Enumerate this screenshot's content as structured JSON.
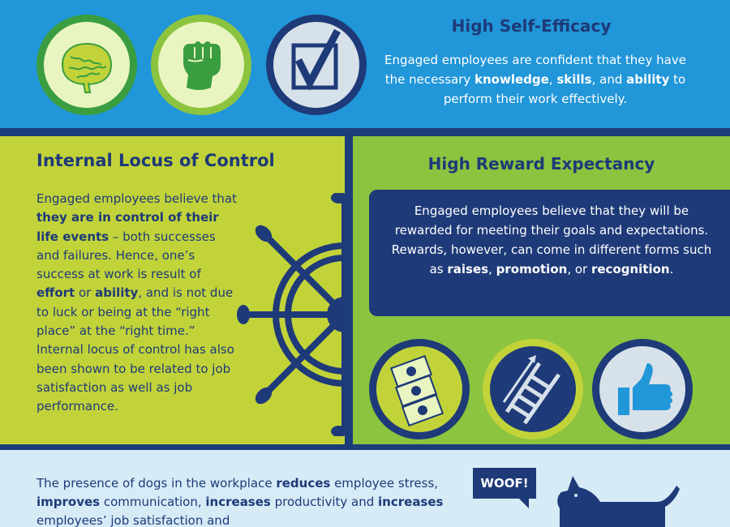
{
  "self_efficacy": {
    "title": "High Self-Efficacy",
    "text_1": "Engaged employees are confident that they have the necessary ",
    "knowledge": "knowledge",
    "comma_1": ", ",
    "skills": "skills",
    "and": ", and ",
    "ability": "ability",
    "text_2": " to perform their work effectively.",
    "icons": [
      "brain-icon",
      "raised-fist-icon",
      "checkbox-icon"
    ]
  },
  "locus": {
    "title": "Internal Locus of Control",
    "t1": "Engaged employees believe that ",
    "b1": "they are in control of their life events",
    "t2": " – both successes and failures. Hence, one’s success at work is result of ",
    "b2": "effort",
    "t3": " or ",
    "b3": "ability",
    "t4": ", and is not due to luck or being at the “right place” at the “right time.” Internal locus of control has also been shown to be related to job satisfaction as well as job performance.",
    "icon": "ship-wheel-icon"
  },
  "reward": {
    "title": "High Reward Expectancy",
    "t1": "Engaged employees believe that they will be rewarded for meeting their goals and expectations. Rewards, however, can come in different forms such as ",
    "b1": "raises",
    "t2": ", ",
    "b2": "promotion",
    "t3": ", or ",
    "b3": "recognition",
    "t4": ".",
    "icons": [
      "money-icon",
      "ladder-icon",
      "thumbs-up-icon"
    ]
  },
  "dogs": {
    "t1": "The presence of dogs in the workplace ",
    "b1": "reduces",
    "t2": " employee stress, ",
    "b2": "improves",
    "t3": " communication, ",
    "b3": "increases",
    "t4": " productivity and ",
    "b4": "increases",
    "t5": " employees’ job satisfaction and",
    "woof": "WOOF!",
    "icon": "dog-icon"
  },
  "colors": {
    "blue": "#2196d8",
    "navy": "#1e3a78",
    "lime": "#c2d33a",
    "green": "#8cc33f",
    "pale": "#d6ebf6"
  }
}
